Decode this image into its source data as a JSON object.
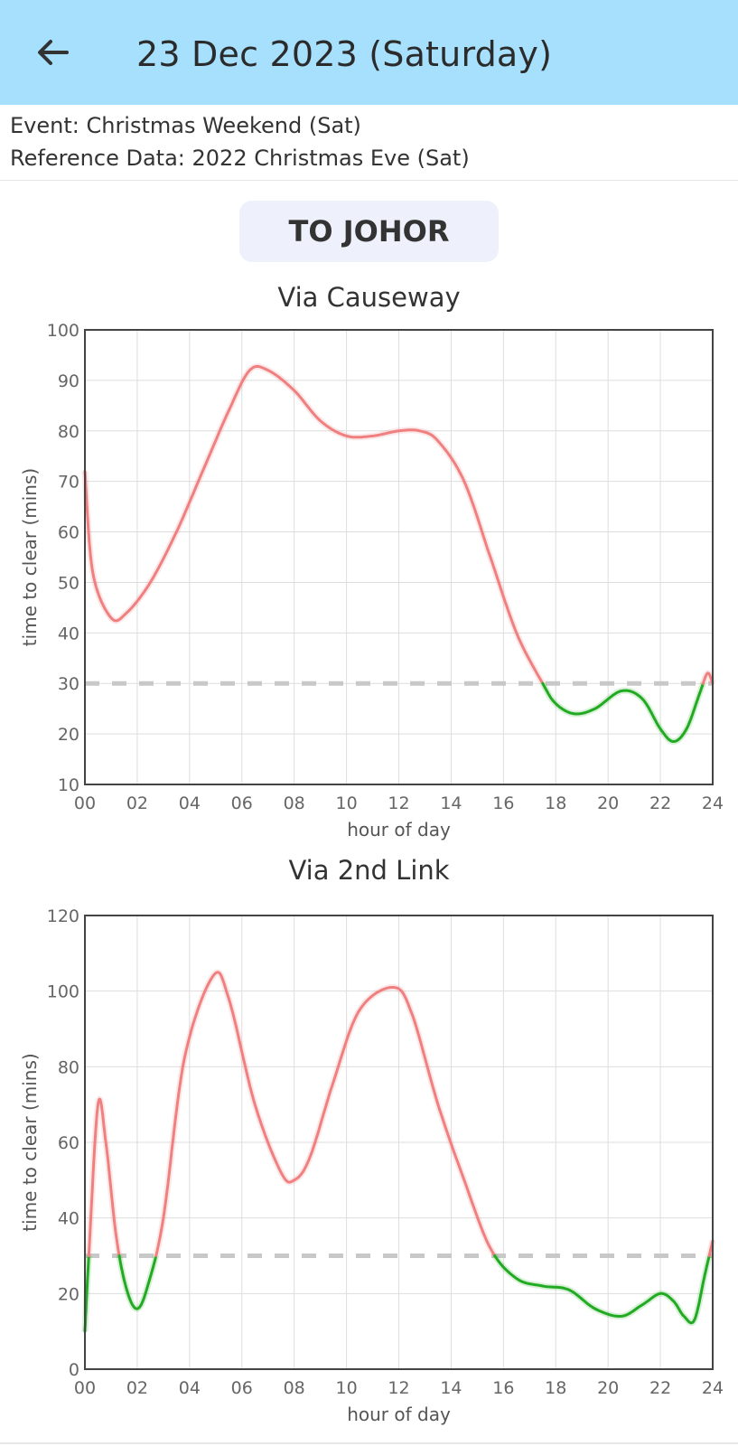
{
  "header": {
    "title": "23 Dec 2023 (Saturday)",
    "back_icon": "arrow-left-icon",
    "background": "#a6e0fd"
  },
  "info": {
    "event": "Event: Christmas Weekend (Sat)",
    "reference": "Reference Data: 2022 Christmas Eve (Sat)"
  },
  "direction_button": {
    "label": "TO JOHOR"
  },
  "colors": {
    "above_threshold": "#f08080",
    "below_threshold": "#22aa22",
    "threshold_line": "#c8c8c8",
    "grid": "#dddddd"
  },
  "chart_data": [
    {
      "type": "line",
      "title": "Via Causeway",
      "xlabel": "hour of day",
      "ylabel": "time to clear (mins)",
      "xlim": [
        0,
        24
      ],
      "ylim": [
        10,
        100
      ],
      "x_ticks": [
        "00",
        "02",
        "04",
        "06",
        "08",
        "10",
        "12",
        "14",
        "16",
        "18",
        "20",
        "22",
        "24"
      ],
      "y_ticks": [
        10,
        20,
        30,
        40,
        50,
        60,
        70,
        80,
        90,
        100
      ],
      "threshold": 30,
      "grid": true,
      "series": [
        {
          "x": [
            0,
            0.3,
            1,
            1.6,
            2.5,
            3.5,
            4.5,
            5.5,
            6.3,
            7,
            8,
            9,
            10,
            11,
            12,
            12.8,
            13.5,
            14.5,
            15.5,
            16.5,
            17.5,
            18,
            18.7,
            19.5,
            20.5,
            21.3,
            22,
            22.5,
            23,
            23.5,
            23.8,
            24
          ],
          "y": [
            72,
            52,
            43,
            44,
            50,
            60,
            72,
            84,
            92,
            92,
            88,
            82,
            79,
            79,
            80,
            80,
            78,
            70,
            55,
            40,
            30,
            26,
            24,
            25,
            28.5,
            27,
            21,
            18.5,
            21,
            28,
            32,
            30
          ]
        }
      ]
    },
    {
      "type": "line",
      "title": "Via 2nd Link",
      "xlabel": "hour of day",
      "ylabel": "time to clear (mins)",
      "xlim": [
        0,
        24
      ],
      "ylim": [
        0,
        120
      ],
      "x_ticks": [
        "00",
        "02",
        "04",
        "06",
        "08",
        "10",
        "12",
        "14",
        "16",
        "18",
        "20",
        "22",
        "24"
      ],
      "y_ticks": [
        0,
        20,
        40,
        60,
        80,
        100,
        120
      ],
      "threshold": 30,
      "grid": true,
      "series": [
        {
          "x": [
            0,
            0.15,
            0.5,
            0.8,
            1.2,
            1.6,
            2,
            2.4,
            3,
            3.8,
            4.9,
            5.5,
            6.5,
            7.5,
            8,
            8.6,
            9.5,
            10.5,
            11.8,
            12.5,
            13.5,
            14.5,
            15.5,
            16.5,
            17.5,
            18.5,
            19.5,
            20.5,
            21.3,
            22,
            22.5,
            22.9,
            23.3,
            23.7,
            24
          ],
          "y": [
            10,
            30,
            70,
            60,
            35,
            21,
            16,
            22,
            40,
            82,
            104,
            98,
            70,
            52,
            50,
            56,
            76,
            95,
            101,
            94,
            70,
            50,
            32,
            24,
            22,
            21,
            16,
            14,
            17,
            20,
            18,
            14,
            13,
            25,
            34
          ]
        }
      ]
    }
  ]
}
